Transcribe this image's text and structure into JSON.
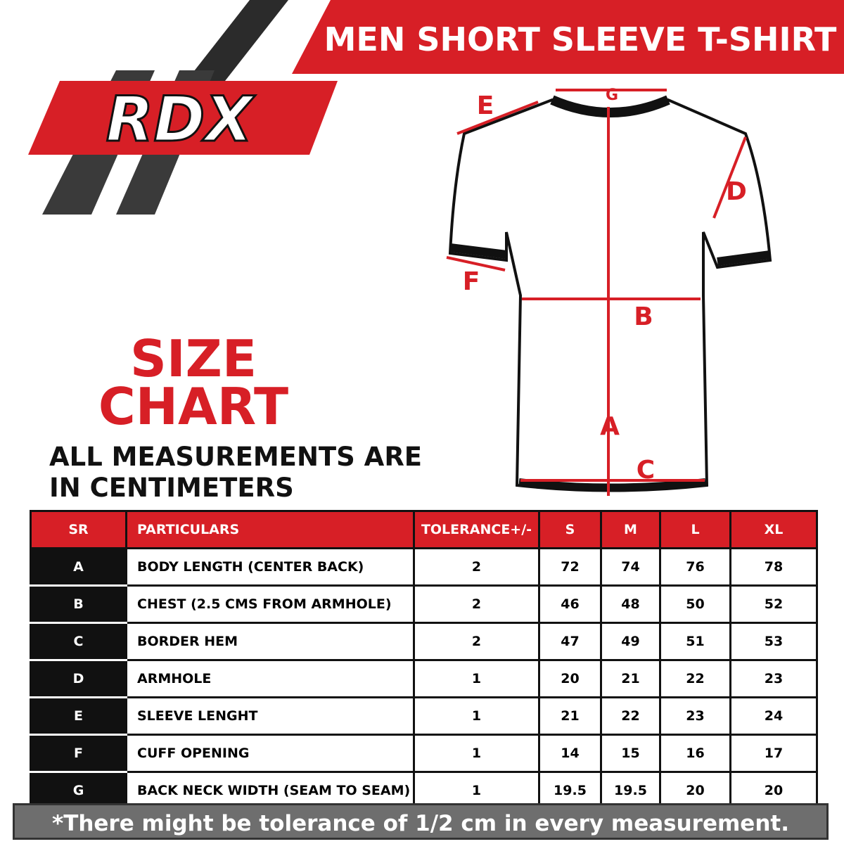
{
  "header": {
    "title": "MEN SHORT SLEEVE T-SHIRT",
    "logo": "RDX"
  },
  "heading": {
    "line1": "SIZE",
    "line2": "CHART"
  },
  "note": {
    "line1": "ALL MEASUREMENTS ARE",
    "line2": "IN CENTIMETERS"
  },
  "diagram": {
    "labels": [
      "A",
      "B",
      "C",
      "D",
      "E",
      "F",
      "G"
    ]
  },
  "table": {
    "columns": [
      "SR",
      "PARTICULARS",
      "TOLERANCE+/-",
      "S",
      "M",
      "L",
      "XL"
    ],
    "rows": [
      [
        "A",
        "BODY LENGTH (CENTER BACK)",
        "2",
        "72",
        "74",
        "76",
        "78"
      ],
      [
        "B",
        "CHEST (2.5 CMS FROM ARMHOLE)",
        "2",
        "46",
        "48",
        "50",
        "52"
      ],
      [
        "C",
        "BORDER HEM",
        "2",
        "47",
        "49",
        "51",
        "53"
      ],
      [
        "D",
        "ARMHOLE",
        "1",
        "20",
        "21",
        "22",
        "23"
      ],
      [
        "E",
        "SLEEVE LENGHT",
        "1",
        "21",
        "22",
        "23",
        "24"
      ],
      [
        "F",
        "CUFF OPENING",
        "1",
        "14",
        "15",
        "16",
        "17"
      ],
      [
        "G",
        "BACK NECK WIDTH  (SEAM TO SEAM)",
        "1",
        "19.5",
        "19.5",
        "20",
        "20"
      ]
    ]
  },
  "footer": "*There might be tolerance of 1/2 cm in every measurement."
}
